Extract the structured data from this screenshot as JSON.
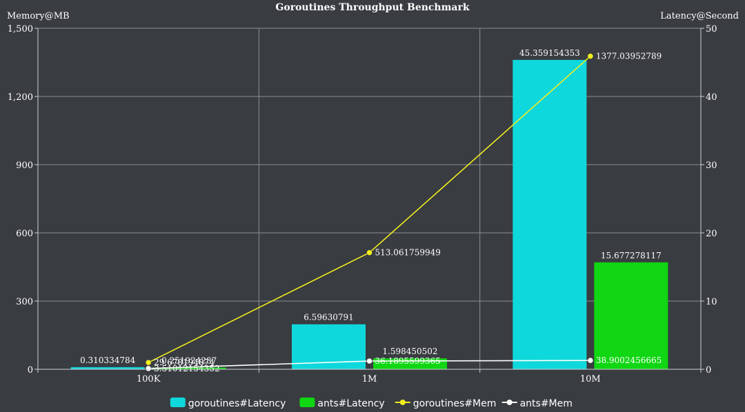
{
  "chart_data": {
    "type": "bar",
    "title": "Goroutines Throughput Benchmark",
    "categories": [
      "100K",
      "1M",
      "10M"
    ],
    "left_axis": {
      "label": "Memory@MB",
      "ylim": [
        0,
        1500
      ],
      "ticks": [
        "0",
        "300",
        "600",
        "900",
        "1,200",
        "1,500"
      ],
      "tick_values": [
        0,
        300,
        600,
        900,
        1200,
        1500
      ]
    },
    "right_axis": {
      "label": "Latency@Second",
      "ylim": [
        0,
        50
      ],
      "ticks": [
        "0",
        "10",
        "20",
        "30",
        "40",
        "50"
      ],
      "tick_values": [
        0,
        10,
        20,
        30,
        40,
        50
      ]
    },
    "grid": true,
    "series": [
      {
        "name": "goroutines#Latency",
        "kind": "bar",
        "axis": "right",
        "color": "#0fd8dc",
        "values": [
          0.310334784,
          6.59630791,
          45.359154353
        ],
        "labels": [
          "0.310334784",
          "6.59630791",
          "45.359154353"
        ]
      },
      {
        "name": "ants#Latency",
        "kind": "bar",
        "axis": "right",
        "color": "#10d613",
        "values": [
          0.251924287,
          1.598450502,
          15.677278117
        ],
        "labels": [
          "0.251924287",
          "1.598450502",
          "15.677278117"
        ]
      },
      {
        "name": "goroutines#Mem",
        "kind": "line",
        "axis": "left",
        "color": "#f2ee1e",
        "values": [
          29.678194874,
          513.061759949,
          1377.03952789
        ],
        "labels": [
          "29.678194874",
          "513.061759949",
          "1377.03952789"
        ]
      },
      {
        "name": "ants#Mem",
        "kind": "line",
        "axis": "left",
        "color": "#ffffff",
        "values": [
          3.51012154352,
          36.1895599365,
          38.9002456665
        ],
        "labels": [
          "3.51012154352",
          "36.1895599365",
          "38.9002456665"
        ]
      }
    ],
    "legend_position": "bottom-center"
  }
}
